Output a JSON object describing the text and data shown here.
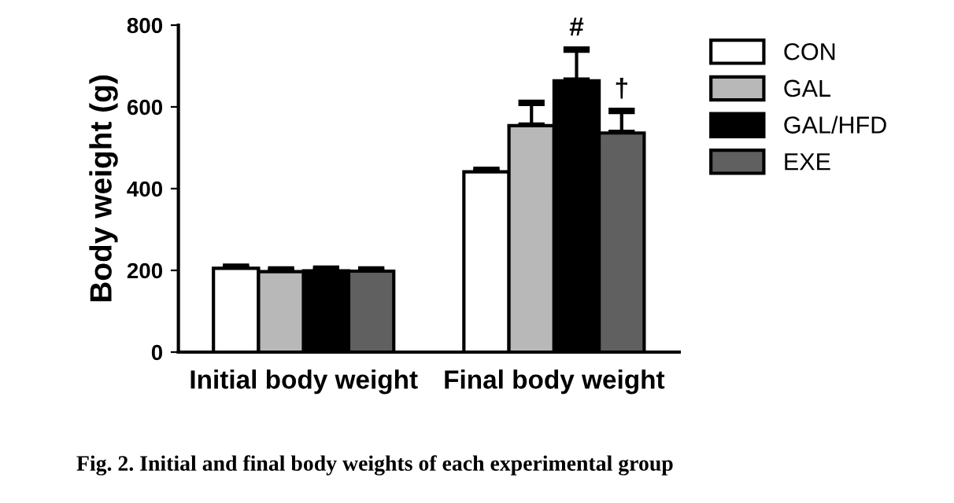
{
  "chart_data": {
    "type": "bar",
    "ylabel": "Body weight (g)",
    "categories": [
      "Initial body weight",
      "Final body weight"
    ],
    "series": [
      {
        "name": "CON",
        "color": "#ffffff",
        "values": [
          205,
          441
        ],
        "errors": [
          4,
          5
        ]
      },
      {
        "name": "GAL",
        "color": "#b8b8b8",
        "values": [
          197,
          554
        ],
        "errors": [
          5,
          56
        ]
      },
      {
        "name": "GAL/HFD",
        "color": "#000000",
        "values": [
          199,
          664
        ],
        "errors": [
          5,
          76
        ],
        "value_labels": [
          null,
          "#"
        ]
      },
      {
        "name": "EXE",
        "color": "#606060",
        "values": [
          198,
          536
        ],
        "errors": [
          4,
          54
        ],
        "value_labels": [
          null,
          "†"
        ]
      }
    ],
    "ylim": [
      0,
      800
    ],
    "yticks": [
      0,
      200,
      400,
      600,
      800
    ],
    "grid": false,
    "legend": "top right",
    "annotations": [
      "Fig. 2. Initial and final body weights of each experimental group"
    ]
  }
}
